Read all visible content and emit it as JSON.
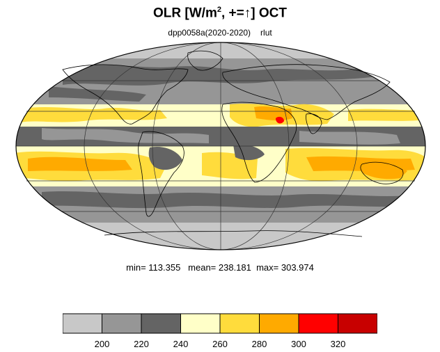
{
  "title": {
    "prefix": "OLR [W/m",
    "sup": "2",
    "suffix": ", +=",
    "arrow": "↑",
    "month": "] OCT"
  },
  "subtitle": {
    "dataset": "dpp0058a(2020-2020)",
    "variable": "rlut"
  },
  "stats": {
    "text": "min= 113.355   mean= 238.181  max= 303.974",
    "min": 113.355,
    "mean": 238.181,
    "max": 303.974
  },
  "colorbar": {
    "levels": [
      200,
      220,
      240,
      260,
      280,
      300,
      320
    ],
    "colors": [
      "#c8c8c8",
      "#969696",
      "#646464",
      "#ffffc8",
      "#ffdc3c",
      "#ffaa00",
      "#ff0000",
      "#c80000"
    ],
    "labels": [
      "200",
      "220",
      "240",
      "260",
      "280",
      "300",
      "320"
    ]
  },
  "map": {
    "projection": "mollweide",
    "ocean_background": "#c8c8c8",
    "gridlines": true
  }
}
